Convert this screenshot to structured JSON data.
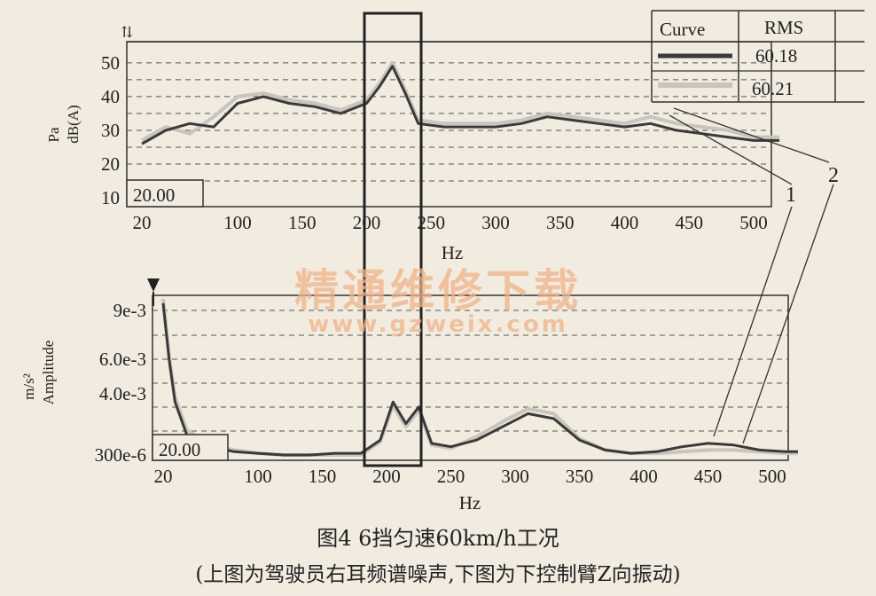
{
  "caption": {
    "title": "图4  6挡匀速60km/h工况",
    "subtitle": "(上图为驾驶员右耳频谱噪声,下图为下控制臂Z向振动)"
  },
  "watermark": {
    "cn": "精通维修下载",
    "url": "www.gzweix.com"
  },
  "colors": {
    "curve1": "#3a3a3a",
    "curve2": "#c9c4bc",
    "background": "#f1ebe0",
    "watermark": "#f0b48a"
  },
  "callouts": {
    "label1": "1",
    "label2": "2"
  },
  "legend": {
    "header_curve": "Curve",
    "header_rms": "RMS",
    "rms1": "60.18",
    "rms2": "60.21"
  },
  "chart_data": [
    {
      "type": "line",
      "xlabel": "Hz",
      "ylabel_unit": "Pa",
      "ylabel": "dB(A)",
      "readout": "20.00",
      "xlim": [
        20,
        520
      ],
      "ylim": [
        10,
        55
      ],
      "yticks": [
        10,
        20,
        30,
        40,
        50
      ],
      "xticks": [
        20,
        100,
        150,
        200,
        250,
        300,
        350,
        400,
        450,
        500
      ],
      "grid": true,
      "highlight_range_hz": [
        200,
        240
      ],
      "series": [
        {
          "rms": 60.18,
          "x": [
            20,
            40,
            60,
            80,
            100,
            120,
            140,
            160,
            180,
            200,
            210,
            220,
            230,
            240,
            260,
            280,
            300,
            320,
            340,
            360,
            380,
            400,
            420,
            440,
            460,
            480,
            500,
            520
          ],
          "y": [
            26,
            30,
            32,
            31,
            38,
            40,
            38,
            37,
            35,
            38,
            43,
            49,
            41,
            32,
            31,
            31,
            31,
            32,
            34,
            33,
            32,
            31,
            32,
            30,
            29,
            28,
            27,
            27
          ]
        },
        {
          "rms": 60.21,
          "x": [
            20,
            40,
            60,
            80,
            100,
            120,
            140,
            160,
            180,
            200,
            210,
            220,
            230,
            240,
            260,
            280,
            300,
            320,
            340,
            360,
            380,
            400,
            420,
            440,
            460,
            480,
            500,
            520
          ],
          "y": [
            27,
            31,
            29,
            34,
            40,
            41,
            39,
            38,
            36,
            39,
            44,
            50,
            42,
            33,
            32,
            32,
            32,
            33,
            35,
            34,
            33,
            32,
            34,
            32,
            31,
            30,
            28,
            28
          ]
        }
      ]
    },
    {
      "type": "line",
      "xlabel": "Hz",
      "ylabel_unit": "m/s²",
      "ylabel": "Amplitude",
      "readout": "20.00",
      "xlim": [
        20,
        520
      ],
      "yticks": [
        {
          "label": "300e-6",
          "value": 0.0003
        },
        {
          "label": "4.0e-3",
          "value": 0.004
        },
        {
          "label": "6.0e-3",
          "value": 0.006
        },
        {
          "label": "9e-3",
          "value": 0.009
        }
      ],
      "xticks": [
        20,
        100,
        150,
        200,
        250,
        300,
        350,
        400,
        450,
        500
      ],
      "grid": true,
      "highlight_range_hz": [
        200,
        240
      ],
      "series": [
        {
          "x": [
            20,
            25,
            30,
            40,
            60,
            80,
            100,
            120,
            140,
            160,
            180,
            195,
            205,
            215,
            225,
            235,
            250,
            270,
            290,
            310,
            330,
            350,
            370,
            390,
            410,
            430,
            450,
            470,
            490,
            510,
            520
          ],
          "y": [
            0.0095,
            0.006,
            0.0035,
            0.0015,
            0.0008,
            0.0005,
            0.0004,
            0.0003,
            0.0003,
            0.0004,
            0.0004,
            0.0012,
            0.0035,
            0.0022,
            0.0032,
            0.001,
            0.0008,
            0.0012,
            0.002,
            0.0028,
            0.0025,
            0.0012,
            0.0006,
            0.0004,
            0.0005,
            0.0008,
            0.001,
            0.0009,
            0.0006,
            0.0005,
            0.0005
          ]
        },
        {
          "x": [
            20,
            25,
            30,
            40,
            60,
            80,
            100,
            120,
            140,
            160,
            180,
            195,
            205,
            215,
            225,
            235,
            250,
            270,
            290,
            310,
            330,
            350,
            370,
            390,
            410,
            430,
            450,
            470,
            490,
            510,
            520
          ],
          "y": [
            0.0098,
            0.0062,
            0.0038,
            0.0018,
            0.0009,
            0.0006,
            0.0004,
            0.0003,
            0.0003,
            0.0003,
            0.0003,
            0.0011,
            0.0033,
            0.002,
            0.003,
            0.0009,
            0.0007,
            0.0014,
            0.0023,
            0.0031,
            0.0028,
            0.0013,
            0.0006,
            0.0004,
            0.0004,
            0.0005,
            0.0006,
            0.0006,
            0.0005,
            0.0004,
            0.0004
          ]
        }
      ]
    }
  ]
}
